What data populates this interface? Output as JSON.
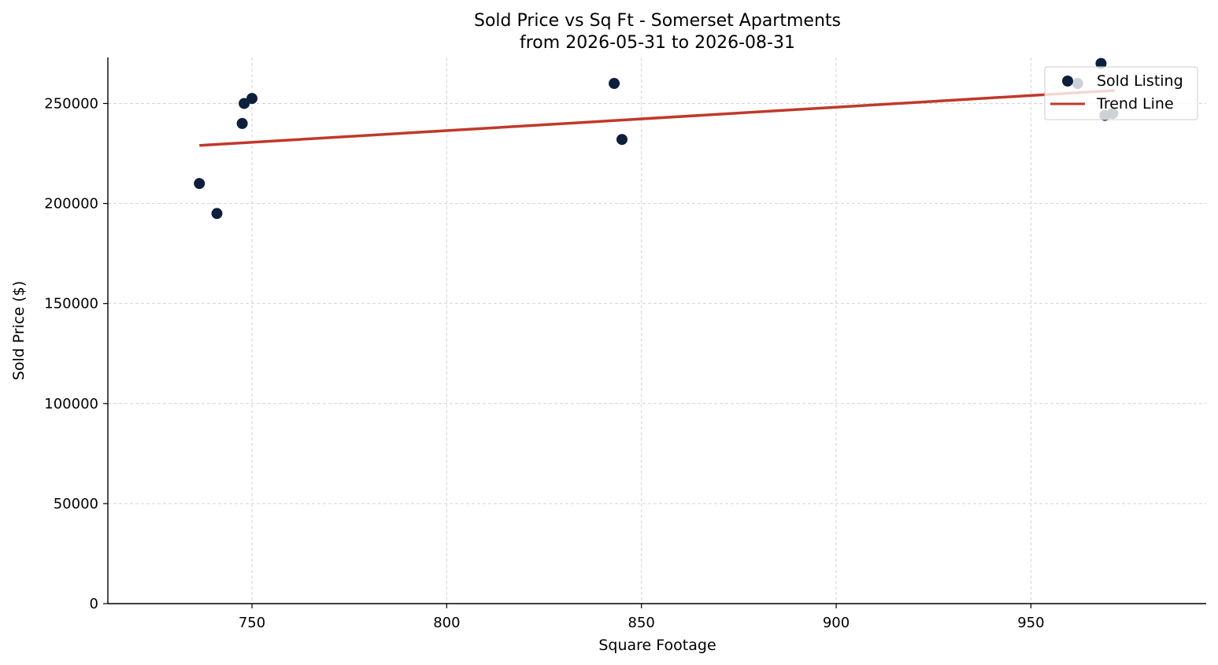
{
  "chart_data": {
    "type": "scatter",
    "title": "Sold Price vs Sq Ft - Somerset Apartments",
    "subtitle": "from 2026-05-31 to 2026-08-31",
    "xlabel": "Square Footage",
    "ylabel": "Sold Price ($)",
    "xlim": [
      713,
      995
    ],
    "ylim": [
      0,
      273000
    ],
    "xticks": [
      "750",
      "800",
      "850",
      "900",
      "950"
    ],
    "yticks": [
      "0",
      "50000",
      "100000",
      "150000",
      "200000",
      "250000"
    ],
    "grid": true,
    "legend_position": "top-right",
    "series": [
      {
        "name": "Sold Listing",
        "type": "scatter",
        "color": "#0d1f3c",
        "points": [
          {
            "x": 736.5,
            "y": 210000
          },
          {
            "x": 741,
            "y": 195000
          },
          {
            "x": 747.5,
            "y": 240000
          },
          {
            "x": 748,
            "y": 250000
          },
          {
            "x": 750,
            "y": 252500
          },
          {
            "x": 843,
            "y": 260000
          },
          {
            "x": 845,
            "y": 232000
          },
          {
            "x": 962,
            "y": 260000
          },
          {
            "x": 968,
            "y": 270000
          },
          {
            "x": 969,
            "y": 244000
          },
          {
            "x": 971,
            "y": 245000
          }
        ]
      },
      {
        "name": "Trend Line",
        "type": "line",
        "color": "#c0392b",
        "points": [
          {
            "x": 736.5,
            "y": 229000
          },
          {
            "x": 971.5,
            "y": 256500
          }
        ]
      }
    ]
  }
}
